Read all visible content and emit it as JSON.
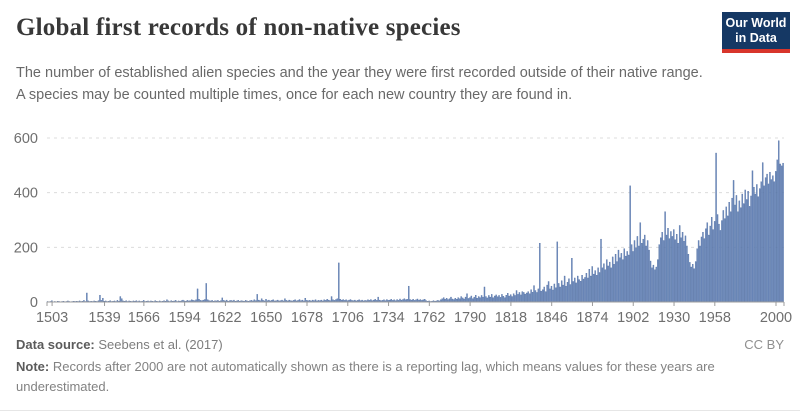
{
  "header": {
    "title": "Global first records of non-native species",
    "logo_line1": "Our World",
    "logo_line2": "in Data",
    "logo_bg": "#153864",
    "logo_red": "#d8352b"
  },
  "subtitle": {
    "line1": "The number of established alien species and the year they were first recorded outside of their native range.",
    "line2": "A species may be counted multiple times, once for each new country they are found in."
  },
  "footer": {
    "source_label": "Data source:",
    "source_value": "Seebens et al. (2017)",
    "license": "CC BY",
    "note_label": "Note:",
    "note_text": "Records after 2000 are not automatically shown as there is a reporting lag, which means values for these years are underestimated."
  },
  "chart_data": {
    "type": "bar",
    "title": "Global first records of non-native species",
    "xlabel": "",
    "ylabel": "",
    "x_start": 1500,
    "x_end": 2005,
    "ylim": [
      0,
      600
    ],
    "y_ticks": [
      0,
      200,
      400,
      600
    ],
    "x_ticks": [
      1503,
      1539,
      1566,
      1594,
      1622,
      1650,
      1678,
      1706,
      1734,
      1762,
      1790,
      1818,
      1846,
      1874,
      1902,
      1930,
      1958,
      2000
    ],
    "grid": "dashed-horizontal",
    "legend": "none",
    "bar_fill": "#7490c0",
    "bar_stroke": "#4c6ba0",
    "axis_color": "#9c9c9c",
    "grid_color": "#dcdcdc",
    "tick_label_color": "#6f6f6f",
    "values": [
      2,
      1,
      2,
      5,
      1,
      2,
      1,
      3,
      2,
      1,
      2,
      3,
      1,
      2,
      4,
      2,
      1,
      2,
      3,
      2,
      3,
      2,
      4,
      2,
      3,
      6,
      2,
      33,
      4,
      2,
      3,
      2,
      4,
      3,
      2,
      5,
      25,
      6,
      14,
      3,
      4,
      2,
      3,
      5,
      2,
      3,
      4,
      2,
      6,
      3,
      20,
      12,
      4,
      3,
      5,
      2,
      4,
      3,
      2,
      4,
      3,
      5,
      2,
      4,
      2,
      3,
      6,
      2,
      3,
      4,
      2,
      4,
      3,
      2,
      5,
      3,
      2,
      4,
      2,
      3,
      5,
      3,
      8,
      4,
      2,
      5,
      3,
      4,
      6,
      2,
      4,
      3,
      5,
      7,
      4,
      3,
      6,
      4,
      5,
      8,
      6,
      5,
      8,
      48,
      10,
      6,
      5,
      7,
      9,
      68,
      8,
      5,
      4,
      6,
      3,
      5,
      4,
      6,
      3,
      5,
      15,
      6,
      4,
      7,
      3,
      5,
      6,
      4,
      7,
      3,
      4,
      6,
      3,
      5,
      4,
      3,
      6,
      4,
      3,
      5,
      6,
      4,
      8,
      5,
      28,
      7,
      5,
      12,
      6,
      4,
      10,
      5,
      7,
      4,
      6,
      8,
      4,
      5,
      7,
      4,
      5,
      7,
      4,
      12,
      6,
      4,
      7,
      5,
      4,
      6,
      8,
      4,
      6,
      9,
      5,
      7,
      4,
      14,
      6,
      5,
      6,
      4,
      7,
      5,
      8,
      4,
      6,
      5,
      7,
      4,
      8,
      6,
      10,
      7,
      5,
      20,
      8,
      6,
      9,
      12,
      143,
      10,
      7,
      9,
      6,
      8,
      5,
      7,
      9,
      6,
      5,
      7,
      4,
      6,
      8,
      5,
      7,
      4,
      6,
      5,
      8,
      6,
      9,
      5,
      7,
      10,
      6,
      18,
      7,
      5,
      6,
      8,
      5,
      9,
      6,
      7,
      10,
      6,
      8,
      5,
      9,
      6,
      11,
      7,
      9,
      12,
      8,
      10,
      58,
      9,
      7,
      10,
      6,
      8,
      11,
      7,
      9,
      6,
      8,
      10,
      5,
      3,
      4,
      2,
      3,
      5,
      3,
      4,
      6,
      4,
      8,
      12,
      16,
      10,
      14,
      9,
      12,
      18,
      11,
      9,
      14,
      10,
      16,
      12,
      20,
      15,
      11,
      18,
      30,
      13,
      16,
      22,
      12,
      18,
      25,
      14,
      20,
      16,
      24,
      18,
      55,
      20,
      15,
      24,
      18,
      28,
      16,
      22,
      26,
      19,
      24,
      17,
      28,
      21,
      16,
      25,
      32,
      22,
      27,
      20,
      30,
      24,
      42,
      28,
      35,
      26,
      38,
      35,
      29,
      33,
      38,
      30,
      45,
      36,
      60,
      42,
      35,
      48,
      215,
      40,
      45,
      55,
      38,
      62,
      75,
      48,
      58,
      44,
      66,
      52,
      220,
      68,
      55,
      78,
      62,
      95,
      58,
      72,
      85,
      64,
      160,
      75,
      88,
      70,
      95,
      82,
      76,
      98,
      84,
      90,
      105,
      88,
      120,
      95,
      130,
      102,
      115,
      98,
      125,
      108,
      230,
      125,
      140,
      118,
      155,
      132,
      146,
      125,
      165,
      138,
      175,
      148,
      190,
      162,
      178,
      155,
      195,
      168,
      185,
      172,
      425,
      210,
      185,
      225,
      198,
      240,
      205,
      290,
      215,
      230,
      245,
      205,
      225,
      190,
      150,
      125,
      135,
      118,
      128,
      155,
      210,
      235,
      255,
      225,
      330,
      245,
      270,
      232,
      258,
      240,
      265,
      228,
      248,
      215,
      280,
      235,
      255,
      222,
      242,
      205,
      175,
      145,
      128,
      138,
      122,
      148,
      195,
      225,
      205,
      238,
      255,
      232,
      268,
      290,
      245,
      278,
      310,
      265,
      295,
      545,
      320,
      285,
      262,
      298,
      335,
      305,
      348,
      315,
      365,
      330,
      380,
      445,
      355,
      390,
      330,
      370,
      345,
      395,
      360,
      410,
      375,
      405,
      350,
      388,
      480,
      420,
      395,
      430,
      385,
      415,
      440,
      510,
      425,
      455,
      468,
      432,
      475,
      448,
      462,
      440,
      478,
      520,
      590,
      505,
      498,
      508
    ]
  }
}
